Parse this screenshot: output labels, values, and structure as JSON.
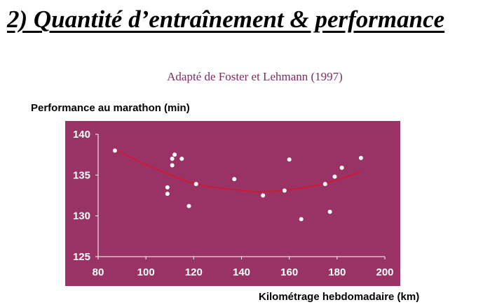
{
  "slide": {
    "title": "2) Quantité d’entraînement & performance",
    "source": "Adapté de Foster et Lehmann (1997)"
  },
  "chart_data": {
    "type": "scatter",
    "title": "",
    "xlabel": "Kilométrage hebdomadaire (km)",
    "ylabel": "Performance au marathon (min)",
    "xlim": [
      80,
      200
    ],
    "ylim": [
      125,
      140
    ],
    "xticks": [
      "80",
      "100",
      "120",
      "140",
      "160",
      "180",
      "200"
    ],
    "yticks": [
      "125",
      "130",
      "135",
      "140"
    ],
    "grid": false,
    "legend": "none",
    "colors": {
      "plot_background": "#993366",
      "points": "#ffffff",
      "trendline": "#e0102a",
      "axes_text": "#ffffff"
    },
    "points": [
      {
        "x": 87,
        "y": 138.0
      },
      {
        "x": 109,
        "y": 133.5
      },
      {
        "x": 109,
        "y": 132.7
      },
      {
        "x": 111,
        "y": 137.0
      },
      {
        "x": 111,
        "y": 136.2
      },
      {
        "x": 112,
        "y": 137.5
      },
      {
        "x": 115,
        "y": 137.0
      },
      {
        "x": 118,
        "y": 131.2
      },
      {
        "x": 121,
        "y": 133.9
      },
      {
        "x": 137,
        "y": 134.5
      },
      {
        "x": 149,
        "y": 132.5
      },
      {
        "x": 158,
        "y": 133.1
      },
      {
        "x": 160,
        "y": 136.9
      },
      {
        "x": 165,
        "y": 129.6
      },
      {
        "x": 175,
        "y": 133.9
      },
      {
        "x": 177,
        "y": 130.5
      },
      {
        "x": 179,
        "y": 134.8
      },
      {
        "x": 182,
        "y": 135.9
      },
      {
        "x": 190,
        "y": 137.1
      }
    ],
    "trendline": {
      "type": "quadratic",
      "points": [
        {
          "x": 87,
          "y": 138.2
        },
        {
          "x": 100,
          "y": 136.3
        },
        {
          "x": 120,
          "y": 134.0
        },
        {
          "x": 140,
          "y": 133.1
        },
        {
          "x": 150,
          "y": 133.0
        },
        {
          "x": 160,
          "y": 133.2
        },
        {
          "x": 175,
          "y": 134.0
        },
        {
          "x": 190,
          "y": 135.4
        }
      ]
    }
  }
}
